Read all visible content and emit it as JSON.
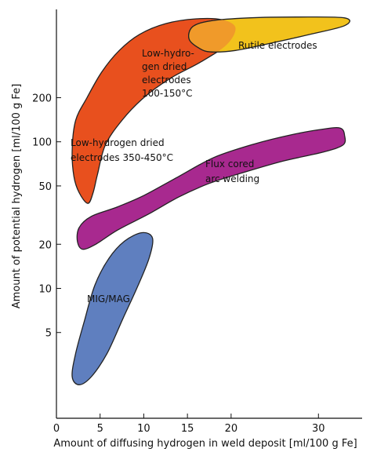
{
  "chart_data": {
    "type": "area",
    "title": "",
    "xlabel": "Amount of diffusing hydrogen in weld deposit [ml/100 g Fe]",
    "ylabel": "Amount of potential hydrogen [ml/100 g Fe]",
    "xlim": [
      0,
      35
    ],
    "ylim": [
      1.3,
      800
    ],
    "y_scale": "log",
    "x_ticks": [
      "0",
      "5",
      "10",
      "15",
      "20",
      "30"
    ],
    "y_ticks": [
      "5",
      "10",
      "20",
      "50",
      "100",
      "200"
    ],
    "grid": false,
    "legend": "none",
    "regions": [
      {
        "label_lines": [
          "Low-hydrogen dried",
          "electrodes 350-450°C"
        ],
        "color": "#e8501e",
        "outline": [
          [
            3.6,
            38
          ],
          [
            2.6,
            45
          ],
          [
            2.0,
            58
          ],
          [
            1.8,
            88
          ],
          [
            2.2,
            140
          ],
          [
            3.5,
            200
          ],
          [
            5.2,
            300
          ],
          [
            7.2,
            420
          ],
          [
            9.5,
            540
          ],
          [
            12.5,
            640
          ],
          [
            16.0,
            690
          ],
          [
            19.0,
            680
          ],
          [
            20.5,
            600
          ],
          [
            19.5,
            460
          ],
          [
            16.5,
            350
          ],
          [
            13.0,
            270
          ],
          [
            10.0,
            200
          ],
          [
            7.5,
            140
          ],
          [
            5.6,
            95
          ],
          [
            4.7,
            60
          ],
          [
            4.2,
            45
          ]
        ]
      },
      {
        "label_lines": [
          "Low-hydro-",
          "gen dried",
          "electrodes",
          "100-150°C"
        ],
        "color": "#e8501e",
        "outline": []
      },
      {
        "label_lines": [
          "Rutile electrodes"
        ],
        "color": "#f2c21c",
        "outline": [
          [
            16.5,
            430
          ],
          [
            15.2,
            500
          ],
          [
            15.6,
            610
          ],
          [
            17.8,
            670
          ],
          [
            22.0,
            700
          ],
          [
            27.5,
            710
          ],
          [
            33.0,
            700
          ],
          [
            33.0,
            620
          ],
          [
            29.0,
            540
          ],
          [
            24.5,
            470
          ],
          [
            20.5,
            420
          ],
          [
            17.8,
            410
          ]
        ]
      },
      {
        "label_lines": [
          "Flux cored",
          "arc welding"
        ],
        "color": "#a8298f",
        "outline": [
          [
            3.0,
            18.5
          ],
          [
            2.4,
            21
          ],
          [
            2.6,
            26
          ],
          [
            4.0,
            31
          ],
          [
            7.0,
            36
          ],
          [
            10.0,
            43
          ],
          [
            14.0,
            58
          ],
          [
            18.0,
            78
          ],
          [
            22.5,
            96
          ],
          [
            27.0,
            112
          ],
          [
            30.5,
            122
          ],
          [
            32.5,
            124
          ],
          [
            33.0,
            110
          ],
          [
            32.8,
            95
          ],
          [
            30.5,
            85
          ],
          [
            26.0,
            74
          ],
          [
            21.5,
            62
          ],
          [
            17.5,
            52
          ],
          [
            14.0,
            42
          ],
          [
            10.5,
            32
          ],
          [
            7.0,
            25
          ],
          [
            4.5,
            20
          ]
        ]
      },
      {
        "label_lines": [
          "MIG/MAG"
        ],
        "color": "#5f7fbf",
        "outline": [
          [
            2.6,
            2.2
          ],
          [
            1.8,
            2.5
          ],
          [
            2.2,
            3.6
          ],
          [
            3.2,
            6.0
          ],
          [
            4.4,
            10.5
          ],
          [
            6.0,
            16
          ],
          [
            7.8,
            21
          ],
          [
            9.8,
            24
          ],
          [
            11.0,
            22
          ],
          [
            10.6,
            16
          ],
          [
            9.2,
            10
          ],
          [
            7.6,
            6.2
          ],
          [
            5.8,
            3.6
          ],
          [
            4.0,
            2.5
          ]
        ]
      }
    ]
  }
}
